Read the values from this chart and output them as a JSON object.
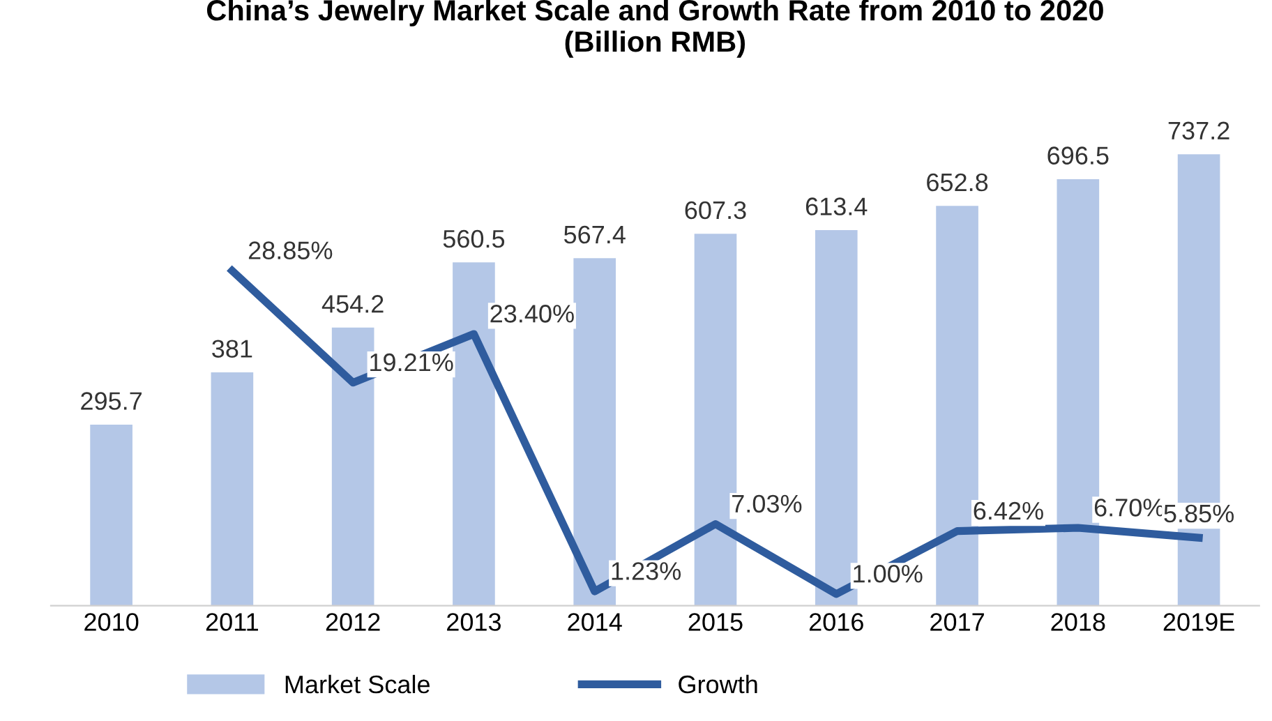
{
  "chart_data": {
    "type": "bar",
    "title": "China’s Jewelry Market Scale and Growth Rate from 2010 to 2020\n(Billion RMB)",
    "categories": [
      "2010",
      "2011",
      "2012",
      "2013",
      "2014",
      "2015",
      "2016",
      "2017",
      "2018",
      "2019E"
    ],
    "series": [
      {
        "name": "Market Scale",
        "color": "#b4c7e7",
        "values": [
          295.7,
          381,
          454.2,
          560.5,
          567.4,
          607.3,
          613.4,
          652.8,
          696.5,
          737.2
        ]
      },
      {
        "name": "Growth",
        "type": "line",
        "axis": "y2",
        "color": "#2f5c9e",
        "values": [
          null,
          28.85,
          19.21,
          23.4,
          1.23,
          7.03,
          1.0,
          6.42,
          6.7,
          5.85
        ],
        "value_labels": [
          null,
          "28.85%",
          "19.21%",
          "23.40%",
          "1.23%",
          "7.03%",
          "1.00%",
          "6.42%",
          "6.70%",
          "5.85%"
        ]
      }
    ],
    "tick_labels": "x",
    "data_labels": true,
    "legend": "bottom",
    "grid": false,
    "marker": "none",
    "line_style": "solid"
  }
}
